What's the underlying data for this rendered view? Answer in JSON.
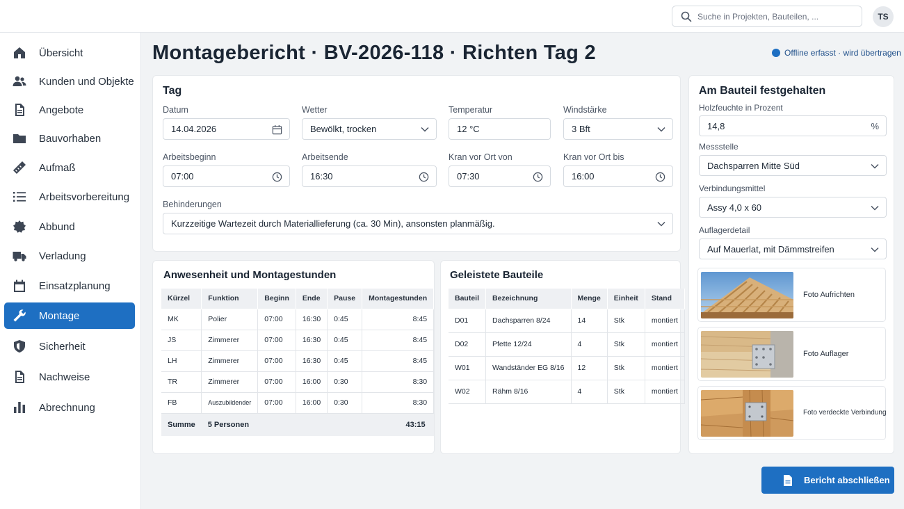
{
  "header": {
    "search_placeholder": "Suche in Projekten, Bauteilen, ...",
    "user_initials": "TS"
  },
  "sidebar": {
    "items": [
      {
        "label": "Übersicht",
        "icon": "home-icon"
      },
      {
        "label": "Kunden und Objekte",
        "icon": "people-icon"
      },
      {
        "label": "Angebote",
        "icon": "document-icon"
      },
      {
        "label": "Bauvorhaben",
        "icon": "folder-icon"
      },
      {
        "label": "Aufmaß",
        "icon": "ruler-icon"
      },
      {
        "label": "Arbeitsvorbereitung",
        "icon": "list-icon"
      },
      {
        "label": "Abbund",
        "icon": "gear-icon"
      },
      {
        "label": "Verladung",
        "icon": "truck-icon"
      },
      {
        "label": "Einsatzplanung",
        "icon": "calendar-icon"
      },
      {
        "label": "Montage",
        "icon": "wrench-icon",
        "active": true
      },
      {
        "label": "Sicherheit",
        "icon": "shield-icon"
      },
      {
        "label": "Nachweise",
        "icon": "document-icon"
      },
      {
        "label": "Abrechnung",
        "icon": "bar-chart-icon"
      }
    ]
  },
  "page": {
    "title": "Montagebericht · BV-2026-118 · Richten Tag 2",
    "sync_status": "Offline erfasst · wird übertragen"
  },
  "tag": {
    "title": "Tag",
    "datum_label": "Datum",
    "datum": "14.04.2026",
    "wetter_label": "Wetter",
    "wetter": "Bewölkt, trocken",
    "temperatur_label": "Temperatur",
    "temperatur": "12 °C",
    "windstaerke_label": "Windstärke",
    "windstaerke": "3 Bft",
    "arbeitsbeginn_label": "Arbeitsbeginn",
    "arbeitsbeginn": "07:00",
    "arbeitsende_label": "Arbeitsende",
    "arbeitsende": "16:30",
    "kran_von_label": "Kran vor Ort von",
    "kran_von": "07:30",
    "kran_bis_label": "Kran vor Ort bis",
    "kran_bis": "16:00",
    "behinderungen_label": "Behinderungen",
    "behinderungen": "Kurzzeitige Wartezeit durch Materiallieferung (ca. 30 Min), ansonsten planmäßig."
  },
  "anwesenheit": {
    "title": "Anwesenheit und Montagestunden",
    "columns": [
      "Kürzel",
      "Funktion",
      "Beginn",
      "Ende",
      "Pause",
      "Montagestunden"
    ],
    "rows": [
      [
        "MK",
        "Polier",
        "07:00",
        "16:30",
        "0:45",
        "8:45"
      ],
      [
        "JS",
        "Zimmerer",
        "07:00",
        "16:30",
        "0:45",
        "8:45"
      ],
      [
        "LH",
        "Zimmerer",
        "07:00",
        "16:30",
        "0:45",
        "8:45"
      ],
      [
        "TR",
        "Zimmerer",
        "07:00",
        "16:00",
        "0:30",
        "8:30"
      ],
      [
        "FB",
        "Auszubildender",
        "07:00",
        "16:00",
        "0:30",
        "8:30"
      ]
    ],
    "summary": {
      "label": "Summe",
      "persons": "5 Personen",
      "total": "43:15"
    }
  },
  "bauteile": {
    "title": "Geleistete Bauteile",
    "columns": [
      "Bauteil",
      "Bezeichnung",
      "Menge",
      "Einheit",
      "Stand"
    ],
    "rows": [
      [
        "D01",
        "Dachsparren 8/24",
        "14",
        "Stk",
        "montiert"
      ],
      [
        "D02",
        "Pfette 12/24",
        "4",
        "Stk",
        "montiert"
      ],
      [
        "W01",
        "Wandständer EG 8/16",
        "12",
        "Stk",
        "montiert"
      ],
      [
        "W02",
        "Rähm 8/16",
        "4",
        "Stk",
        "montiert"
      ]
    ]
  },
  "bauteil_detail": {
    "title": "Am Bauteil festgehalten",
    "holzfeuchte_label": "Holzfeuchte in Prozent",
    "holzfeuchte": "14,8",
    "holzfeuchte_unit": "%",
    "messstelle_label": "Messstelle",
    "messstelle": "Dachsparren Mitte Süd",
    "verbindungsmittel_label": "Verbindungsmittel",
    "verbindungsmittel": "Assy 4,0 x 60",
    "auflagerdetail_label": "Auflagerdetail",
    "auflagerdetail": "Auf Mauerlat, mit Dämmstreifen",
    "photos": [
      {
        "label": "Foto Aufrichten"
      },
      {
        "label": "Foto Auflager"
      },
      {
        "label": "Foto verdeckte Verbindung"
      }
    ]
  },
  "actions": {
    "finish_label": "Bericht abschließen"
  }
}
